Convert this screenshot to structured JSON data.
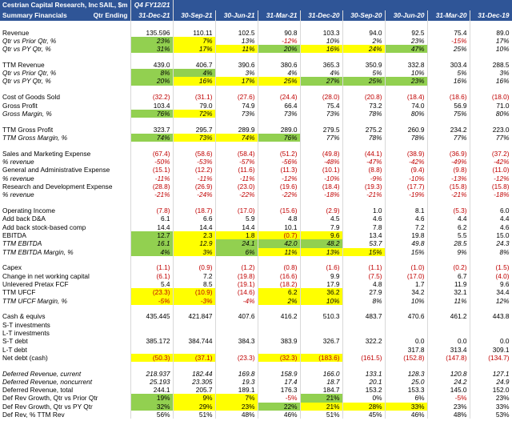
{
  "header": {
    "company": "Cestrian Capital Research, Inc",
    "subtitle": "Summary Financials",
    "ticker": "SAIL, $m",
    "qtr_ending": "Qtr Ending",
    "fiscal": "Q4 FY12/21",
    "periods": [
      "31-Dec-21",
      "30-Sep-21",
      "30-Jun-21",
      "31-Mar-21",
      "31-Dec-20",
      "30-Sep-20",
      "30-Jun-20",
      "31-Mar-20",
      "31-Dec-19"
    ]
  },
  "sections": [
    [
      {
        "label": "Revenue",
        "values": [
          "135.596",
          "110.11",
          "102.5",
          "90.8",
          "103.3",
          "94.0",
          "92.5",
          "75.4",
          "89.0"
        ]
      },
      {
        "label": "Qtr vs Prior Qtr, %",
        "italic": true,
        "values": [
          "23%",
          "7%",
          "13%",
          "-12%",
          "10%",
          "2%",
          "23%",
          "-15%",
          "17%"
        ],
        "green": [
          0
        ],
        "yellow": [
          1
        ]
      },
      {
        "label": "Qtr vs PY Qtr, %",
        "italic": true,
        "values": [
          "31%",
          "17%",
          "11%",
          "20%",
          "16%",
          "24%",
          "47%",
          "25%",
          "10%"
        ],
        "green": [
          0,
          3,
          6
        ],
        "yellow": [
          1,
          2,
          4,
          5
        ]
      }
    ],
    [
      {
        "label": "TTM Revenue",
        "values": [
          "439.0",
          "406.7",
          "390.6",
          "380.6",
          "365.3",
          "350.9",
          "332.8",
          "303.4",
          "288.5"
        ]
      },
      {
        "label": "Qtr vs Prior Qtr, %",
        "italic": true,
        "values": [
          "8%",
          "4%",
          "3%",
          "4%",
          "4%",
          "5%",
          "10%",
          "5%",
          "3%"
        ],
        "green": [
          0,
          1
        ]
      },
      {
        "label": "Qtr vs PY Qtr, %",
        "italic": true,
        "values": [
          "20%",
          "16%",
          "17%",
          "25%",
          "27%",
          "25%",
          "23%",
          "16%",
          "16%"
        ],
        "green": [
          0,
          4,
          5,
          6
        ],
        "yellow": [
          1,
          2,
          3
        ]
      }
    ],
    [
      {
        "label": "Cost of Goods Sold",
        "values": [
          "(32.2)",
          "(31.1)",
          "(27.6)",
          "(24.4)",
          "(28.0)",
          "(20.8)",
          "(18.4)",
          "(18.6)",
          "(18.0)"
        ]
      },
      {
        "label": "Gross Profit",
        "values": [
          "103.4",
          "79.0",
          "74.9",
          "66.4",
          "75.4",
          "73.2",
          "74.0",
          "56.9",
          "71.0"
        ]
      },
      {
        "label": "Gross Margin, %",
        "italic": true,
        "values": [
          "76%",
          "72%",
          "73%",
          "73%",
          "73%",
          "78%",
          "80%",
          "75%",
          "80%"
        ],
        "green": [
          0
        ],
        "yellow": [
          1
        ]
      }
    ],
    [
      {
        "label": "TTM Gross Profit",
        "values": [
          "323.7",
          "295.7",
          "289.9",
          "289.0",
          "279.5",
          "275.2",
          "260.9",
          "234.2",
          "223.0"
        ]
      },
      {
        "label": "TTM Gross Margin, %",
        "italic": true,
        "values": [
          "74%",
          "73%",
          "74%",
          "76%",
          "77%",
          "78%",
          "78%",
          "77%",
          "77%"
        ],
        "green": [
          0,
          3
        ],
        "yellow": [
          1,
          2
        ]
      }
    ],
    [
      {
        "label": "Sales and Marketing Expense",
        "values": [
          "(67.4)",
          "(58.6)",
          "(58.4)",
          "(51.2)",
          "(49.8)",
          "(44.1)",
          "(38.9)",
          "(36.9)",
          "(37.2)"
        ]
      },
      {
        "label": "% revenue",
        "italic": true,
        "values": [
          "-50%",
          "-53%",
          "-57%",
          "-56%",
          "-48%",
          "-47%",
          "-42%",
          "-49%",
          "-42%"
        ]
      },
      {
        "label": "General and Administrative Expense",
        "values": [
          "(15.1)",
          "(12.2)",
          "(11.6)",
          "(11.3)",
          "(10.1)",
          "(8.8)",
          "(9.4)",
          "(9.8)",
          "(11.0)"
        ]
      },
      {
        "label": "% revenue",
        "italic": true,
        "values": [
          "-11%",
          "-11%",
          "-11%",
          "-12%",
          "-10%",
          "-9%",
          "-10%",
          "-13%",
          "-12%"
        ]
      },
      {
        "label": "Research and Development Expense",
        "values": [
          "(28.8)",
          "(26.9)",
          "(23.0)",
          "(19.6)",
          "(18.4)",
          "(19.3)",
          "(17.7)",
          "(15.8)",
          "(15.8)"
        ]
      },
      {
        "label": "% revenue",
        "italic": true,
        "values": [
          "-21%",
          "-24%",
          "-22%",
          "-22%",
          "-18%",
          "-21%",
          "-19%",
          "-21%",
          "-18%"
        ]
      }
    ],
    [
      {
        "label": "Operating Income",
        "values": [
          "(7.8)",
          "(18.7)",
          "(17.0)",
          "(15.6)",
          "(2.9)",
          "1.0",
          "8.1",
          "(5.3)",
          "6.0"
        ]
      },
      {
        "label": "Add back D&A",
        "values": [
          "6.1",
          "6.6",
          "5.9",
          "4.8",
          "4.5",
          "4.6",
          "4.6",
          "4.4",
          "4.4"
        ]
      },
      {
        "label": "Add back stock-based comp",
        "values": [
          "14.4",
          "14.4",
          "14.4",
          "10.1",
          "7.9",
          "7.8",
          "7.2",
          "6.2",
          "4.6"
        ]
      },
      {
        "label": "EBITDA",
        "values": [
          "12.7",
          "2.3",
          "1.8",
          "(0.7)",
          "9.6",
          "13.4",
          "19.8",
          "5.5",
          "15.0"
        ],
        "green": [
          0
        ],
        "yellow": [
          1,
          2,
          3,
          4
        ]
      },
      {
        "label": "TTM EBITDA",
        "italic": true,
        "values": [
          "16.1",
          "12.9",
          "24.1",
          "42.0",
          "48.2",
          "53.7",
          "49.8",
          "28.5",
          "24.3"
        ],
        "green": [
          0,
          2,
          3,
          4
        ],
        "yellow": [
          1
        ]
      },
      {
        "label": "TTM EBITDA Margin, %",
        "italic": true,
        "values": [
          "4%",
          "3%",
          "6%",
          "11%",
          "13%",
          "15%",
          "15%",
          "9%",
          "8%"
        ],
        "green": [
          0,
          2
        ],
        "yellow": [
          1,
          3,
          4,
          5
        ]
      }
    ],
    [
      {
        "label": "Capex",
        "values": [
          "(1.1)",
          "(0.9)",
          "(1.2)",
          "(0.8)",
          "(1.6)",
          "(1.1)",
          "(1.0)",
          "(0.2)",
          "(1.5)"
        ]
      },
      {
        "label": "Change in net working capital",
        "values": [
          "(6.1)",
          "7.2",
          "(19.8)",
          "(16.6)",
          "9.9",
          "(7.5)",
          "(17.0)",
          "6.7",
          "(4.0)"
        ]
      },
      {
        "label": "Unlevered Pretax FCF",
        "values": [
          "5.4",
          "8.5",
          "(19.1)",
          "(18.2)",
          "17.9",
          "4.8",
          "1.7",
          "11.9",
          "9.6"
        ]
      },
      {
        "label": "TTM UFCF",
        "values": [
          "(23.3)",
          "(10.9)",
          "(14.6)",
          "6.2",
          "36.2",
          "27.9",
          "34.2",
          "32.1",
          "34.4"
        ],
        "yellow": [
          0,
          1,
          3,
          4
        ]
      },
      {
        "label": "TTM UFCF Margin, %",
        "italic": true,
        "values": [
          "-5%",
          "-3%",
          "-4%",
          "2%",
          "10%",
          "8%",
          "10%",
          "11%",
          "12%"
        ],
        "yellow": [
          0,
          1,
          3,
          4
        ]
      }
    ],
    [
      {
        "label": "Cash & equivs",
        "values": [
          "435.445",
          "421.847",
          "407.6",
          "416.2",
          "510.3",
          "483.7",
          "470.6",
          "461.2",
          "443.8"
        ]
      },
      {
        "label": "S-T investments",
        "values": []
      },
      {
        "label": "L-T investments",
        "values": []
      },
      {
        "label": "S-T debt",
        "values": [
          "385.172",
          "384.744",
          "384.3",
          "383.9",
          "326.7",
          "322.2",
          "0.0",
          "0.0",
          "0.0"
        ]
      },
      {
        "label": "L-T debt",
        "values": [
          null,
          null,
          null,
          null,
          null,
          null,
          "317.8",
          "313.4",
          "309.1"
        ]
      },
      {
        "label": "Net debt (cash)",
        "values": [
          "(50.3)",
          "(37.1)",
          "(23.3)",
          "(32.3)",
          "(183.6)",
          "(161.5)",
          "(152.8)",
          "(147.8)",
          "(134.7)"
        ],
        "yellow": [
          0,
          1,
          3,
          4
        ]
      }
    ],
    [
      {
        "label": "Deferred Revenue, current",
        "italic": true,
        "values": [
          "218.937",
          "182.44",
          "169.8",
          "158.9",
          "166.0",
          "133.1",
          "128.3",
          "120.8",
          "127.1"
        ]
      },
      {
        "label": "Deferred Revenue, noncurrent",
        "italic": true,
        "values": [
          "25.193",
          "23.305",
          "19.3",
          "17.4",
          "18.7",
          "20.1",
          "25.0",
          "24.2",
          "24.9"
        ]
      },
      {
        "label": "Deferred Revenue, total",
        "values": [
          "244.1",
          "205.7",
          "189.1",
          "176.3",
          "184.7",
          "153.2",
          "153.3",
          "145.0",
          "152.0"
        ]
      },
      {
        "label": "Def Rev Growth, Qtr vs Prior Qtr",
        "values": [
          "19%",
          "9%",
          "7%",
          "-5%",
          "21%",
          "0%",
          "6%",
          "-5%",
          "23%"
        ],
        "green": [
          0,
          4
        ],
        "yellow": [
          1,
          2
        ]
      },
      {
        "label": "Def Rev Growth, Qtr vs PY Qtr",
        "values": [
          "32%",
          "29%",
          "23%",
          "22%",
          "21%",
          "28%",
          "33%",
          "23%",
          "33%"
        ],
        "green": [
          0,
          3
        ],
        "yellow": [
          1,
          2,
          4,
          5,
          6
        ]
      },
      {
        "label": "Def Rev, % TTM Rev",
        "values": [
          "56%",
          "51%",
          "48%",
          "46%",
          "51%",
          "45%",
          "46%",
          "48%",
          "53%"
        ]
      }
    ]
  ]
}
